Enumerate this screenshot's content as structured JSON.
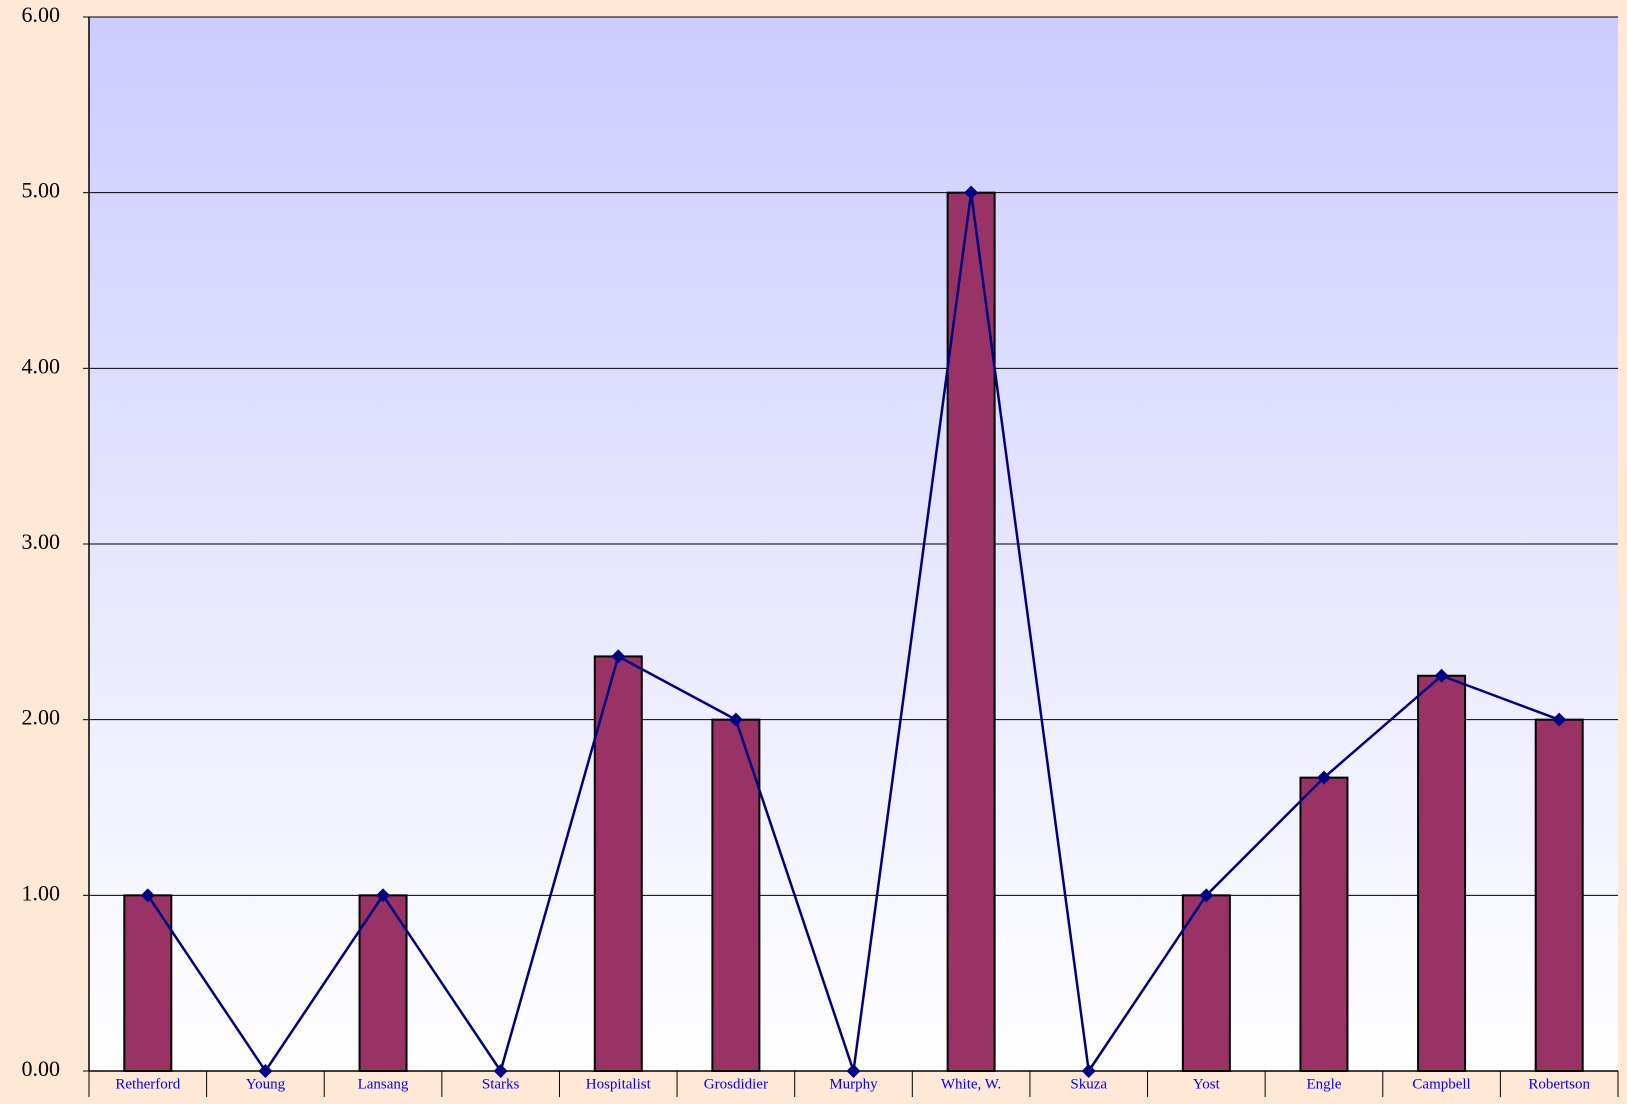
{
  "chart_data": {
    "type": "bar",
    "categories": [
      "Retherford",
      "Young",
      "Lansang",
      "Starks",
      "Hospitalist",
      "Grosdidier",
      "Murphy",
      "White, W.",
      "Skuza",
      "Yost",
      "Engle",
      "Campbell",
      "Robertson"
    ],
    "series": [
      {
        "type": "bar",
        "values": [
          1.0,
          0.0,
          1.0,
          0.0,
          2.36,
          2.0,
          0.0,
          5.0,
          0.0,
          1.0,
          1.67,
          2.25,
          2.0
        ],
        "color": "#993366"
      },
      {
        "type": "line",
        "marker": "diamond",
        "values": [
          1.0,
          0.0,
          1.0,
          0.0,
          2.36,
          2.0,
          0.0,
          5.0,
          0.0,
          1.0,
          1.67,
          2.25,
          2.0
        ],
        "color": "#000080"
      }
    ],
    "y_ticks": [
      "0.00",
      "1.00",
      "2.00",
      "3.00",
      "4.00",
      "5.00",
      "6.00"
    ],
    "ylim": [
      0,
      6
    ],
    "grid": true,
    "colors": {
      "page_background": "#ffe8d6",
      "plot_gradient_top": "#ccccff",
      "plot_gradient_bottom": "#ffffff",
      "category_label": "#0000ff",
      "gridline": "#000000"
    }
  }
}
